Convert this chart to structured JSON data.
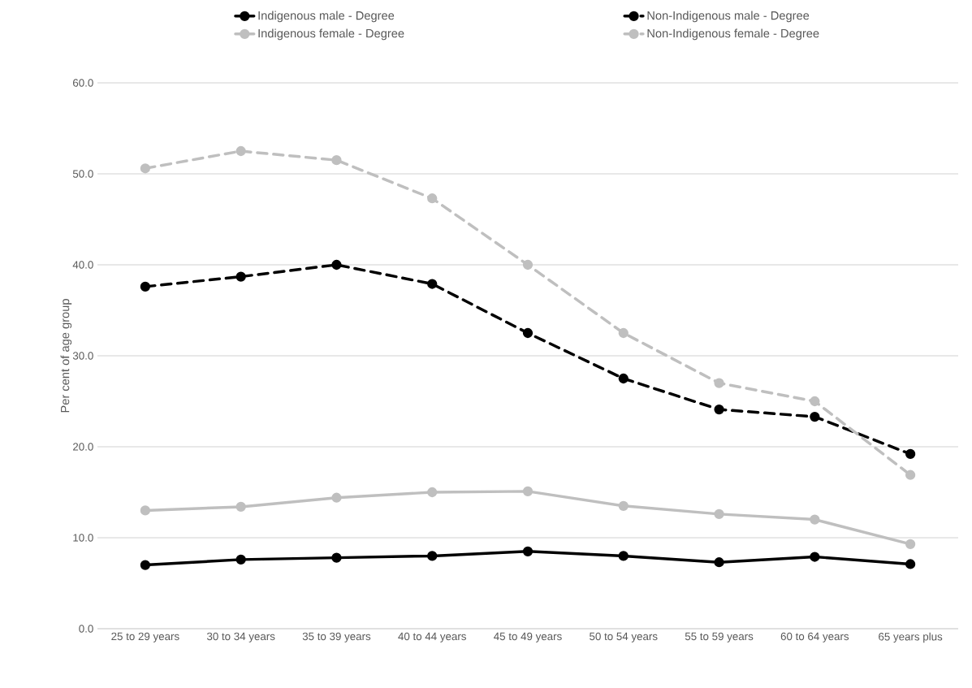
{
  "chart_data": {
    "type": "line",
    "ylabel": "Per cent of age group",
    "categories": [
      "25 to 29 years",
      "30 to 34 years",
      "35 to 39 years",
      "40 to 44 years",
      "45 to 49 years",
      "50 to 54 years",
      "55 to 59 years",
      "60 to 64 years",
      "65 years plus"
    ],
    "series": [
      {
        "name": "Indigenous male - Degree",
        "color": "#000000",
        "line_style": "solid",
        "values": [
          7.0,
          7.6,
          7.8,
          8.0,
          8.5,
          8.0,
          7.3,
          7.9,
          7.1
        ]
      },
      {
        "name": "Non-Indigenous male - Degree",
        "color": "#000000",
        "line_style": "dashed",
        "values": [
          37.6,
          38.7,
          40.0,
          37.9,
          32.5,
          27.5,
          24.1,
          23.3,
          19.2
        ]
      },
      {
        "name": "Indigenous female - Degree",
        "color": "#bfbfbf",
        "line_style": "solid",
        "values": [
          13.0,
          13.4,
          14.4,
          15.0,
          15.1,
          13.5,
          12.6,
          12.0,
          9.3
        ]
      },
      {
        "name": "Non-Indigenous female - Degree",
        "color": "#bfbfbf",
        "line_style": "dashed",
        "values": [
          50.6,
          52.5,
          51.5,
          47.3,
          40.0,
          32.5,
          27.0,
          25.0,
          16.9
        ]
      }
    ],
    "ylim": [
      0,
      60
    ],
    "yticks": [
      {
        "value": 0,
        "label": "0.0"
      },
      {
        "value": 10,
        "label": "10.0"
      },
      {
        "value": 20,
        "label": "20.0"
      },
      {
        "value": 30,
        "label": "30.0"
      },
      {
        "value": 40,
        "label": "40.0"
      },
      {
        "value": 50,
        "label": "50.0"
      },
      {
        "value": 60,
        "label": "60.0"
      }
    ],
    "grid": "y",
    "legend": "top",
    "marker": "circle"
  }
}
